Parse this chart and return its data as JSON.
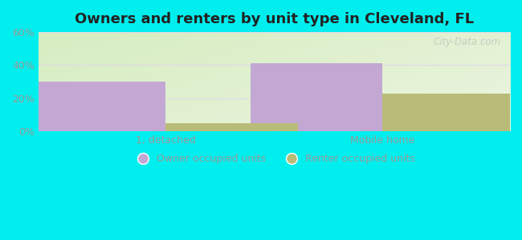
{
  "title": "Owners and renters by unit type in Cleveland, FL",
  "categories": [
    "1, detached",
    "Mobile home"
  ],
  "owner_values": [
    30,
    41
  ],
  "renter_values": [
    5,
    23
  ],
  "owner_color": "#c4a8d4",
  "renter_color": "#b8bc78",
  "bar_width": 0.28,
  "ylim": [
    0,
    60
  ],
  "yticks": [
    0,
    20,
    40,
    60
  ],
  "yticklabels": [
    "0%",
    "20%",
    "40%",
    "60%"
  ],
  "background_outer": "#00eeee",
  "title_fontsize": 13,
  "tick_fontsize": 9,
  "legend_fontsize": 9,
  "watermark": "City-Data.com",
  "group_positions": [
    0.27,
    0.73
  ],
  "xlim": [
    0.0,
    1.0
  ]
}
